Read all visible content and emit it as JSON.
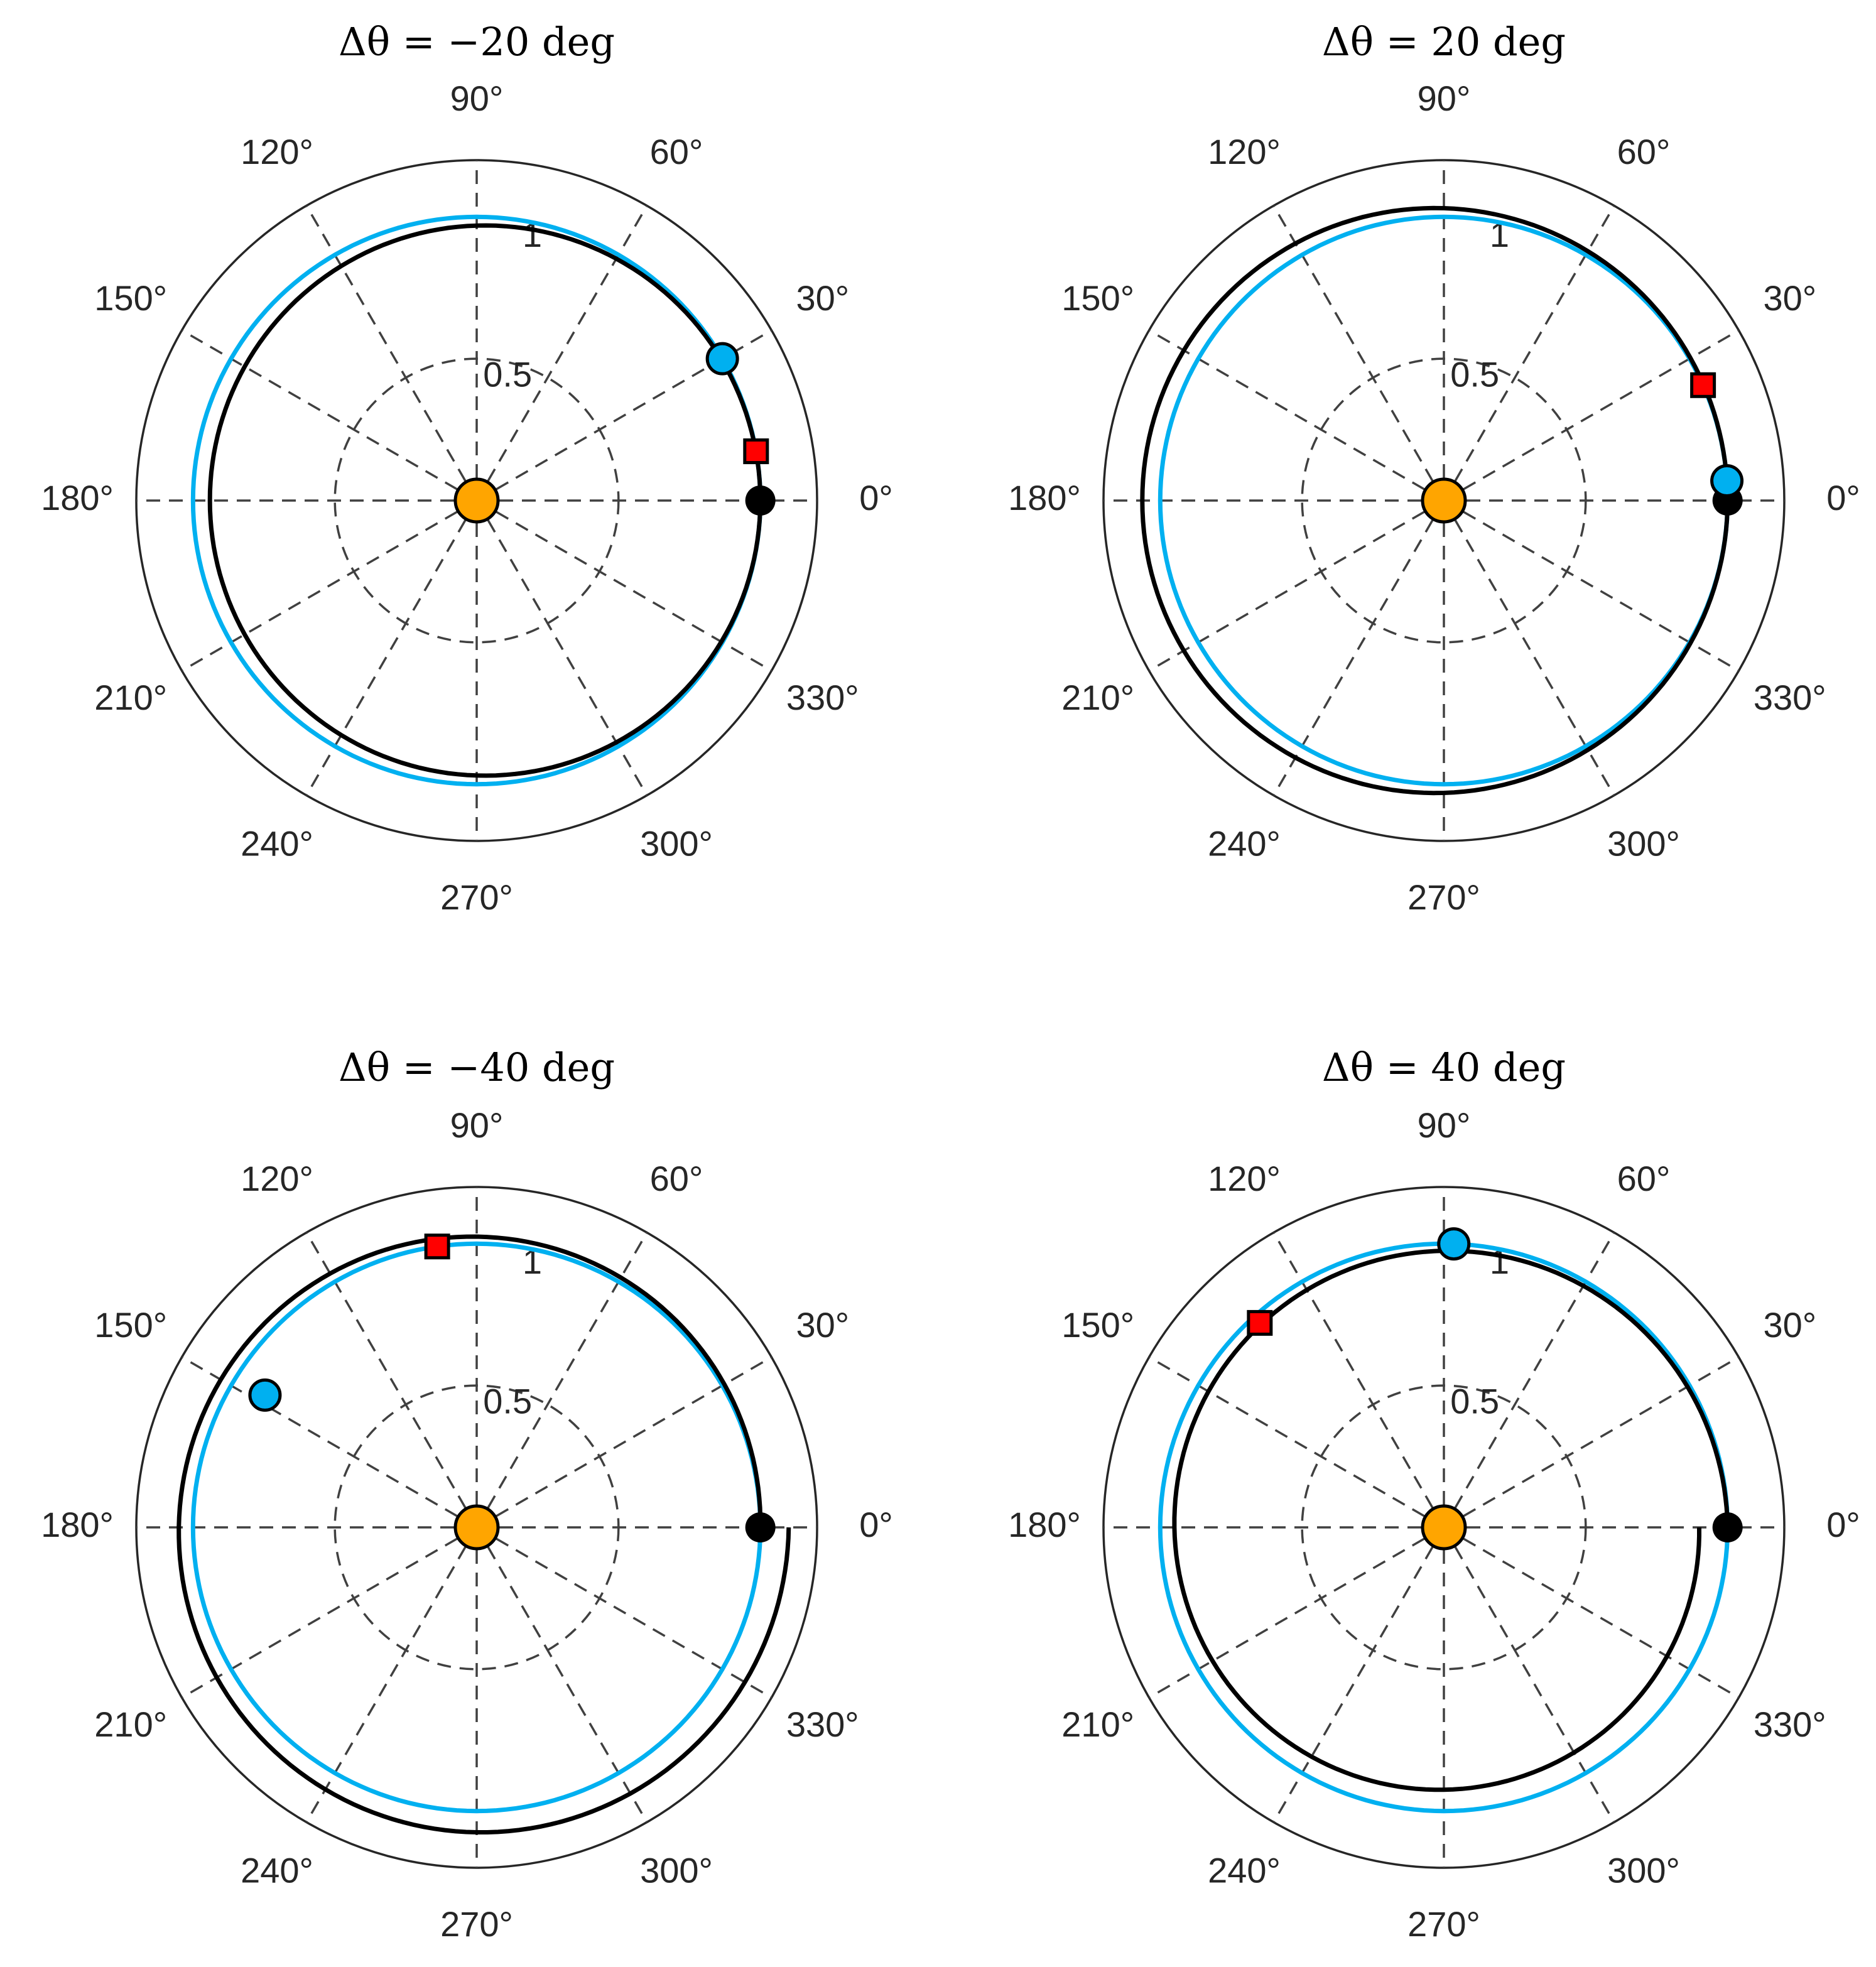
{
  "chart_data": [
    {
      "type": "polar",
      "title": "Δθ = −20 deg",
      "theta_ticks": [
        "0°",
        "30°",
        "60°",
        "90°",
        "120°",
        "150°",
        "180°",
        "210°",
        "240°",
        "270°",
        "300°",
        "330°"
      ],
      "r_ticks": [
        "0.5",
        "1"
      ],
      "rlim": [
        0,
        1.2
      ],
      "series": [
        {
          "name": "blue orbit",
          "color": "#00b0f0",
          "kind": "circle",
          "r": 1.0
        },
        {
          "name": "black orbit",
          "color": "#000000",
          "kind": "ellipse",
          "r0": 1.0,
          "e": 0.0306,
          "peri_deg": 180,
          "turns": 1
        }
      ],
      "markers": [
        {
          "name": "origin",
          "shape": "circle",
          "color": "#ffa500",
          "theta_deg": 0,
          "r": 0,
          "size": 34
        },
        {
          "name": "black-point",
          "shape": "circle",
          "color": "#000000",
          "theta_deg": 0,
          "r": 1.0,
          "size": 24
        },
        {
          "name": "blue-point",
          "shape": "circle",
          "color": "#00b0f0",
          "theta_deg": 30,
          "r": 1.0,
          "size": 24
        },
        {
          "name": "red-square",
          "shape": "square",
          "color": "#ff0000",
          "theta_deg": 10,
          "r": 1.0,
          "size": 18
        }
      ]
    },
    {
      "type": "polar",
      "title": "Δθ = 20 deg",
      "theta_ticks": [
        "0°",
        "30°",
        "60°",
        "90°",
        "120°",
        "150°",
        "180°",
        "210°",
        "240°",
        "270°",
        "300°",
        "330°"
      ],
      "r_ticks": [
        "0.5",
        "1"
      ],
      "rlim": [
        0,
        1.2
      ],
      "series": [
        {
          "name": "blue orbit",
          "color": "#00b0f0",
          "kind": "circle",
          "r": 1.0
        },
        {
          "name": "black orbit",
          "color": "#000000",
          "kind": "ellipse",
          "r0": 1.0,
          "e": 0.0306,
          "peri_deg": 0,
          "turns": 1
        }
      ],
      "markers": [
        {
          "name": "origin",
          "shape": "circle",
          "color": "#ffa500",
          "theta_deg": 0,
          "r": 0,
          "size": 34
        },
        {
          "name": "black-point",
          "shape": "circle",
          "color": "#000000",
          "theta_deg": 0,
          "r": 1.0,
          "size": 24
        },
        {
          "name": "blue-point",
          "shape": "circle",
          "color": "#00b0f0",
          "theta_deg": 4,
          "r": 1.0,
          "size": 24
        },
        {
          "name": "red-square",
          "shape": "square",
          "color": "#ff0000",
          "theta_deg": 24,
          "r": 1.0,
          "size": 18
        }
      ]
    },
    {
      "type": "polar",
      "title": "Δθ = −40 deg",
      "theta_ticks": [
        "0°",
        "30°",
        "60°",
        "90°",
        "120°",
        "150°",
        "180°",
        "210°",
        "240°",
        "270°",
        "300°",
        "330°"
      ],
      "r_ticks": [
        "0.5",
        "1"
      ],
      "rlim": [
        0,
        1.2
      ],
      "series": [
        {
          "name": "blue orbit",
          "color": "#00b0f0",
          "kind": "circle",
          "r": 1.0
        },
        {
          "name": "black orbit",
          "color": "#000000",
          "kind": "spiral",
          "r_start": 1.0,
          "r_end": 1.1,
          "theta_start": 0,
          "theta_end": 360
        }
      ],
      "markers": [
        {
          "name": "origin",
          "shape": "circle",
          "color": "#ffa500",
          "theta_deg": 0,
          "r": 0,
          "size": 34
        },
        {
          "name": "black-point",
          "shape": "circle",
          "color": "#000000",
          "theta_deg": 0,
          "r": 1.0,
          "size": 24
        },
        {
          "name": "blue-point",
          "shape": "circle",
          "color": "#00b0f0",
          "theta_deg": 148,
          "r": 0.88,
          "size": 24
        },
        {
          "name": "red-square",
          "shape": "square",
          "color": "#ff0000",
          "theta_deg": 98,
          "r": 1.0,
          "size": 18
        }
      ]
    },
    {
      "type": "polar",
      "title": "Δθ = 40 deg",
      "theta_ticks": [
        "0°",
        "30°",
        "60°",
        "90°",
        "120°",
        "150°",
        "180°",
        "210°",
        "240°",
        "270°",
        "300°",
        "330°"
      ],
      "r_ticks": [
        "0.5",
        "1"
      ],
      "rlim": [
        0,
        1.2
      ],
      "series": [
        {
          "name": "blue orbit",
          "color": "#00b0f0",
          "kind": "circle",
          "r": 1.0
        },
        {
          "name": "black orbit",
          "color": "#000000",
          "kind": "spiral",
          "r_start": 1.0,
          "r_end": 0.9,
          "theta_start": 0,
          "theta_end": 360
        }
      ],
      "markers": [
        {
          "name": "origin",
          "shape": "circle",
          "color": "#ffa500",
          "theta_deg": 0,
          "r": 0,
          "size": 34
        },
        {
          "name": "black-point",
          "shape": "circle",
          "color": "#000000",
          "theta_deg": 0,
          "r": 1.0,
          "size": 24
        },
        {
          "name": "blue-point",
          "shape": "circle",
          "color": "#00b0f0",
          "theta_deg": 88,
          "r": 1.0,
          "size": 24
        },
        {
          "name": "red-square",
          "shape": "square",
          "color": "#ff0000",
          "theta_deg": 132,
          "r": 0.97,
          "size": 18
        }
      ]
    }
  ]
}
